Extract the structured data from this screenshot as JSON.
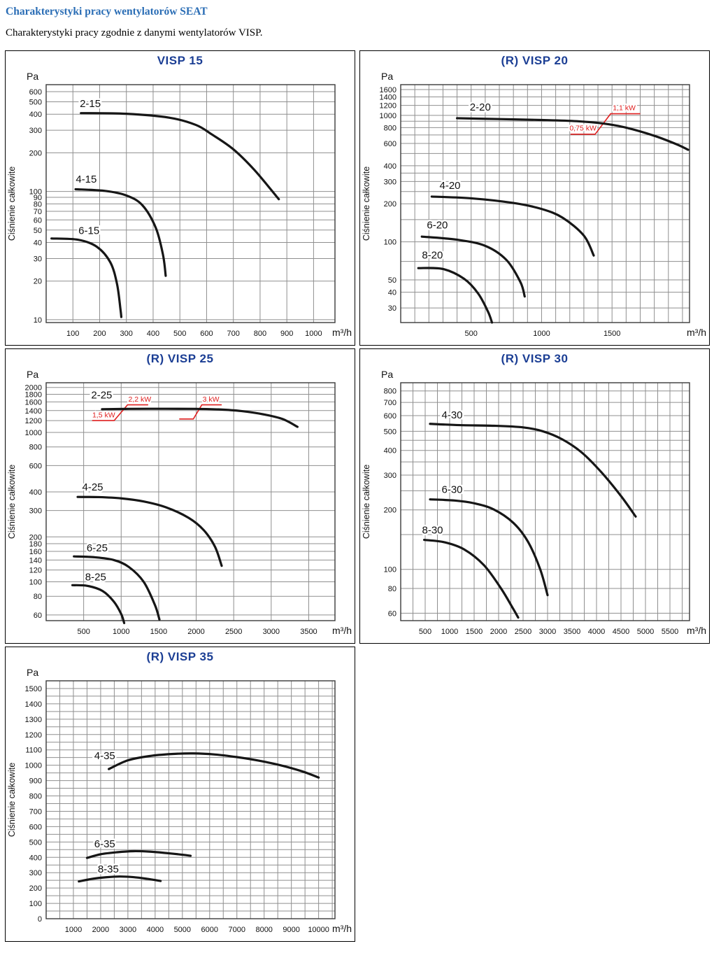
{
  "page": {
    "heading": "Charakterystyki pracy wentylatorów SEAT",
    "subheading": "Charakterystyki pracy zgodnie z danymi wentylatorów VISP.",
    "heading_color": "#2a6db5",
    "title_color": "#1b3e94",
    "annotation_color": "#e02020",
    "grid_color": "#8f8f8f",
    "curve_color": "#161616"
  },
  "chart_data": [
    {
      "type": "line",
      "title": "VISP 15",
      "y_unit": "Pa",
      "x_unit": "m³/h",
      "ylabel": "Ciśnienie całkowite",
      "y_scale": "log",
      "ylim": [
        9.5,
        680
      ],
      "y_ticks": [
        10,
        20,
        30,
        40,
        50,
        60,
        70,
        80,
        90,
        100,
        200,
        300,
        400,
        500,
        600
      ],
      "y_minor": [],
      "xlim": [
        0,
        1080
      ],
      "x_ticks": [
        100,
        200,
        300,
        400,
        500,
        600,
        700,
        800,
        900,
        1000
      ],
      "x_grid_step": 100,
      "series": [
        {
          "name": "2-15",
          "label_at": [
            165,
            455
          ],
          "points": [
            [
              130,
              408
            ],
            [
              300,
              403
            ],
            [
              460,
              376
            ],
            [
              560,
              330
            ],
            [
              620,
              278
            ],
            [
              700,
              213
            ],
            [
              780,
              146
            ],
            [
              870,
              87
            ]
          ]
        },
        {
          "name": "4-15",
          "label_at": [
            150,
            117
          ],
          "points": [
            [
              110,
              104
            ],
            [
              220,
              101
            ],
            [
              300,
              93
            ],
            [
              360,
              78
            ],
            [
              410,
              52
            ],
            [
              437,
              32
            ],
            [
              447,
              22
            ]
          ]
        },
        {
          "name": "6-15",
          "label_at": [
            160,
            46.5
          ],
          "points": [
            [
              20,
              43
            ],
            [
              120,
              42
            ],
            [
              190,
              37
            ],
            [
              240,
              28
            ],
            [
              265,
              19
            ],
            [
              278,
              12
            ],
            [
              281,
              10.5
            ]
          ]
        }
      ],
      "annotations": []
    },
    {
      "type": "line",
      "title": "(R) VISP 20",
      "y_unit": "Pa",
      "x_unit": "m³/h",
      "ylabel": "Ciśnienie całkowite",
      "y_scale": "log",
      "ylim": [
        23,
        1750
      ],
      "y_ticks": [
        30,
        40,
        50,
        100,
        200,
        300,
        400,
        600,
        800,
        1000,
        1200,
        1400,
        1600
      ],
      "y_minor": [
        70,
        150,
        250,
        350,
        500,
        700,
        900
      ],
      "xlim": [
        0,
        2050
      ],
      "x_ticks": [
        500,
        1000,
        1500
      ],
      "x_grid_step": 100,
      "series": [
        {
          "name": "2-20",
          "label_at": [
            565,
            1095
          ],
          "points": [
            [
              400,
              950
            ],
            [
              700,
              935
            ],
            [
              1000,
              920
            ],
            [
              1250,
              900
            ],
            [
              1440,
              862
            ],
            [
              1600,
              800
            ],
            [
              1800,
              690
            ],
            [
              1960,
              590
            ],
            [
              2040,
              535
            ]
          ]
        },
        {
          "name": "4-20",
          "label_at": [
            350,
            262
          ],
          "points": [
            [
              220,
              228
            ],
            [
              500,
              221
            ],
            [
              800,
              203
            ],
            [
              1000,
              182
            ],
            [
              1150,
              155
            ],
            [
              1300,
              112
            ],
            [
              1370,
              78
            ]
          ]
        },
        {
          "name": "6-20",
          "label_at": [
            260,
            128
          ],
          "points": [
            [
              150,
              110
            ],
            [
              400,
              104
            ],
            [
              600,
              93
            ],
            [
              750,
              72
            ],
            [
              850,
              48
            ],
            [
              880,
              37
            ]
          ]
        },
        {
          "name": "8-20",
          "label_at": [
            225,
            74
          ],
          "points": [
            [
              125,
              62
            ],
            [
              300,
              61
            ],
            [
              450,
              51
            ],
            [
              550,
              39
            ],
            [
              620,
              28
            ],
            [
              648,
              23
            ]
          ]
        }
      ],
      "annotations": [
        {
          "points": [
            [
              1205,
              710
            ],
            [
              1380,
              710
            ],
            [
              1490,
              1030
            ],
            [
              1700,
              1030
            ]
          ],
          "labels": [
            {
              "text": "0,75 kW",
              "at": [
                1198,
                762
              ]
            },
            {
              "text": "1,1 kW",
              "at": [
                1505,
                1098
              ]
            }
          ]
        }
      ]
    },
    {
      "type": "line",
      "title": "(R) VISP 25",
      "y_unit": "Pa",
      "x_unit": "m³/h",
      "ylabel": "Ciśnienie całkowite",
      "y_scale": "log",
      "ylim": [
        55,
        2150
      ],
      "y_ticks": [
        60,
        80,
        100,
        120,
        140,
        160,
        180,
        200,
        300,
        400,
        600,
        800,
        1000,
        1200,
        1400,
        1600,
        1800,
        2000
      ],
      "y_minor": [],
      "xlim": [
        0,
        3850
      ],
      "x_ticks": [
        500,
        1000,
        1500,
        2000,
        2500,
        3000,
        3500
      ],
      "x_grid_step": 500,
      "series": [
        {
          "name": "2-25",
          "label_at": [
            740,
            1690
          ],
          "points": [
            [
              745,
              1430
            ],
            [
              1100,
              1438
            ],
            [
              1600,
              1440
            ],
            [
              2000,
              1438
            ],
            [
              2300,
              1425
            ],
            [
              2600,
              1390
            ],
            [
              2900,
              1320
            ],
            [
              3150,
              1230
            ],
            [
              3350,
              1090
            ]
          ]
        },
        {
          "name": "4-25",
          "label_at": [
            620,
            408
          ],
          "points": [
            [
              420,
              370
            ],
            [
              700,
              369
            ],
            [
              1000,
              362
            ],
            [
              1300,
              345
            ],
            [
              1600,
              315
            ],
            [
              1900,
              268
            ],
            [
              2100,
              222
            ],
            [
              2250,
              172
            ],
            [
              2340,
              128
            ]
          ]
        },
        {
          "name": "6-25",
          "label_at": [
            680,
            160
          ],
          "points": [
            [
              370,
              148
            ],
            [
              650,
              146
            ],
            [
              900,
              140
            ],
            [
              1100,
              126
            ],
            [
              1300,
              100
            ],
            [
              1450,
              70
            ],
            [
              1510,
              56
            ]
          ]
        },
        {
          "name": "8-25",
          "label_at": [
            660,
            102
          ],
          "points": [
            [
              350,
              95
            ],
            [
              550,
              94
            ],
            [
              750,
              87
            ],
            [
              900,
              74
            ],
            [
              1000,
              61
            ],
            [
              1040,
              53
            ]
          ]
        }
      ],
      "annotations": [
        {
          "points": [
            [
              613,
              1200
            ],
            [
              906,
              1200
            ],
            [
              1085,
              1530
            ],
            [
              1360,
              1530
            ]
          ],
          "labels": [
            {
              "text": "1,5 kW",
              "at": [
                615,
                1262
              ]
            },
            {
              "text": "2,2 kW",
              "at": [
                1095,
                1610
              ]
            }
          ]
        },
        {
          "points": [
            [
              1774,
              1230
            ],
            [
              1962,
              1230
            ],
            [
              2075,
              1530
            ],
            [
              2340,
              1530
            ]
          ],
          "labels": [
            {
              "text": "3 kW",
              "at": [
                2085,
                1610
              ]
            }
          ]
        }
      ]
    },
    {
      "type": "line",
      "title": "(R) VISP 30",
      "y_unit": "Pa",
      "x_unit": "m³/h",
      "ylabel": "Ciśnienie całkowite",
      "y_scale": "log",
      "ylim": [
        55,
        880
      ],
      "y_ticks": [
        60,
        80,
        100,
        200,
        300,
        400,
        500,
        600,
        700,
        800
      ],
      "y_minor": [
        150,
        250,
        350,
        450
      ],
      "xlim": [
        0,
        5900
      ],
      "x_ticks": [
        500,
        1000,
        1500,
        2000,
        2500,
        3000,
        3500,
        4000,
        4500,
        5000,
        5500
      ],
      "x_grid_step": 250,
      "series": [
        {
          "name": "4-30",
          "label_at": [
            1050,
            580
          ],
          "points": [
            [
              600,
              545
            ],
            [
              1200,
              537
            ],
            [
              1900,
              533
            ],
            [
              2500,
              523
            ],
            [
              2900,
              500
            ],
            [
              3300,
              455
            ],
            [
              3700,
              390
            ],
            [
              4100,
              310
            ],
            [
              4500,
              235
            ],
            [
              4800,
              185
            ]
          ]
        },
        {
          "name": "6-30",
          "label_at": [
            1050,
            244
          ],
          "points": [
            [
              600,
              226
            ],
            [
              1100,
              223
            ],
            [
              1500,
              216
            ],
            [
              1900,
              201
            ],
            [
              2300,
              172
            ],
            [
              2600,
              138
            ],
            [
              2850,
              100
            ],
            [
              3000,
              74
            ]
          ]
        },
        {
          "name": "8-30",
          "label_at": [
            650,
            152
          ],
          "points": [
            [
              480,
              141
            ],
            [
              900,
              137
            ],
            [
              1300,
              126
            ],
            [
              1700,
              105
            ],
            [
              2050,
              80
            ],
            [
              2300,
              63
            ],
            [
              2400,
              57
            ]
          ]
        }
      ],
      "annotations": []
    },
    {
      "type": "line",
      "title": "(R) VISP 35",
      "y_unit": "Pa",
      "x_unit": "m³/h",
      "ylabel": "Ciśnienie całkowite",
      "y_scale": "linear",
      "ylim": [
        0,
        1550
      ],
      "y_ticks": [
        0,
        100,
        200,
        300,
        400,
        500,
        600,
        700,
        800,
        900,
        1000,
        1100,
        1200,
        1300,
        1400,
        1500
      ],
      "y_minor": [
        50,
        150,
        250,
        350,
        450,
        550,
        650,
        750,
        850,
        950,
        1050,
        1150,
        1250,
        1350,
        1450
      ],
      "xlim": [
        0,
        10600
      ],
      "x_ticks": [
        1000,
        2000,
        3000,
        4000,
        5000,
        6000,
        7000,
        8000,
        9000,
        10000
      ],
      "x_grid_step": 500,
      "series": [
        {
          "name": "4-35",
          "label_at": [
            2150,
            1040
          ],
          "points": [
            [
              2300,
              975
            ],
            [
              3000,
              1032
            ],
            [
              3800,
              1060
            ],
            [
              4600,
              1073
            ],
            [
              5400,
              1077
            ],
            [
              6200,
              1070
            ],
            [
              7000,
              1053
            ],
            [
              7800,
              1030
            ],
            [
              8600,
              1000
            ],
            [
              9400,
              960
            ],
            [
              10000,
              920
            ]
          ]
        },
        {
          "name": "6-35",
          "label_at": [
            2150,
            465
          ],
          "points": [
            [
              1500,
              396
            ],
            [
              2000,
              420
            ],
            [
              2600,
              433
            ],
            [
              3200,
              440
            ],
            [
              3800,
              437
            ],
            [
              4400,
              428
            ],
            [
              5000,
              417
            ],
            [
              5300,
              410
            ]
          ]
        },
        {
          "name": "8-35",
          "label_at": [
            2280,
            300
          ],
          "points": [
            [
              1200,
              243
            ],
            [
              1700,
              260
            ],
            [
              2200,
              270
            ],
            [
              2700,
              275
            ],
            [
              3200,
              271
            ],
            [
              3700,
              260
            ],
            [
              4200,
              246
            ]
          ]
        }
      ],
      "annotations": []
    }
  ]
}
